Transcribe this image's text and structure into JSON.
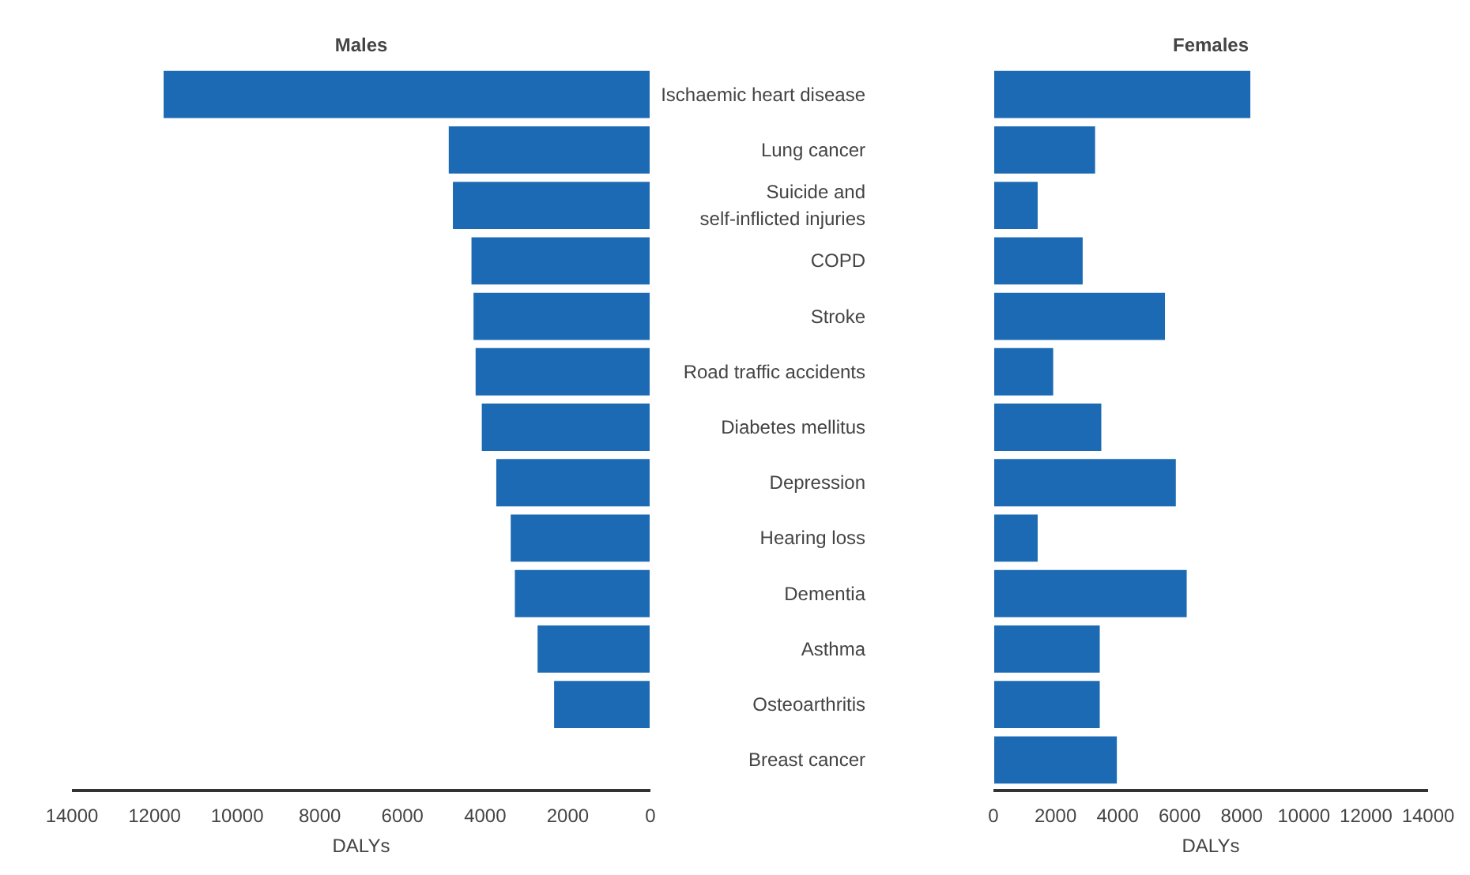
{
  "chart_data": [
    {
      "type": "bar",
      "orientation": "horizontal",
      "title": "Males",
      "xlabel": "DALYs",
      "tick_labels": "x",
      "grid": false,
      "color": "#1c6ab4",
      "categories": [
        null,
        null,
        null,
        null,
        null,
        null,
        null,
        null,
        null,
        null,
        null,
        null,
        null
      ],
      "values": [
        11800,
        4900,
        4800,
        4350,
        4300,
        4250,
        4100,
        3750,
        3400,
        3300,
        2750,
        2350,
        null
      ],
      "xlim": [
        14000,
        0
      ],
      "xticks": [
        14000,
        12000,
        10000,
        8000,
        6000,
        4000,
        2000,
        0
      ]
    },
    {
      "type": "bar",
      "orientation": "horizontal",
      "title": "Females",
      "xlabel": "DALYs",
      "grid": false,
      "color": "#1c6ab4",
      "categories": [
        "Ischaemic heart disease",
        "Lung cancer",
        "Suicide and\nself-inflicted injuries",
        "COPD",
        "Stroke",
        "Road traffic accidents",
        "Diabetes mellitus",
        "Depression",
        "Hearing loss",
        "Dementia",
        "Asthma",
        "Osteoarthritis",
        "Breast cancer"
      ],
      "values": [
        8300,
        3300,
        1450,
        2900,
        5550,
        1950,
        3500,
        5900,
        1450,
        6250,
        3450,
        3450,
        4000
      ],
      "xlim": [
        0,
        14000
      ],
      "xticks": [
        0,
        2000,
        4000,
        6000,
        8000,
        10000,
        12000,
        14000
      ]
    }
  ]
}
